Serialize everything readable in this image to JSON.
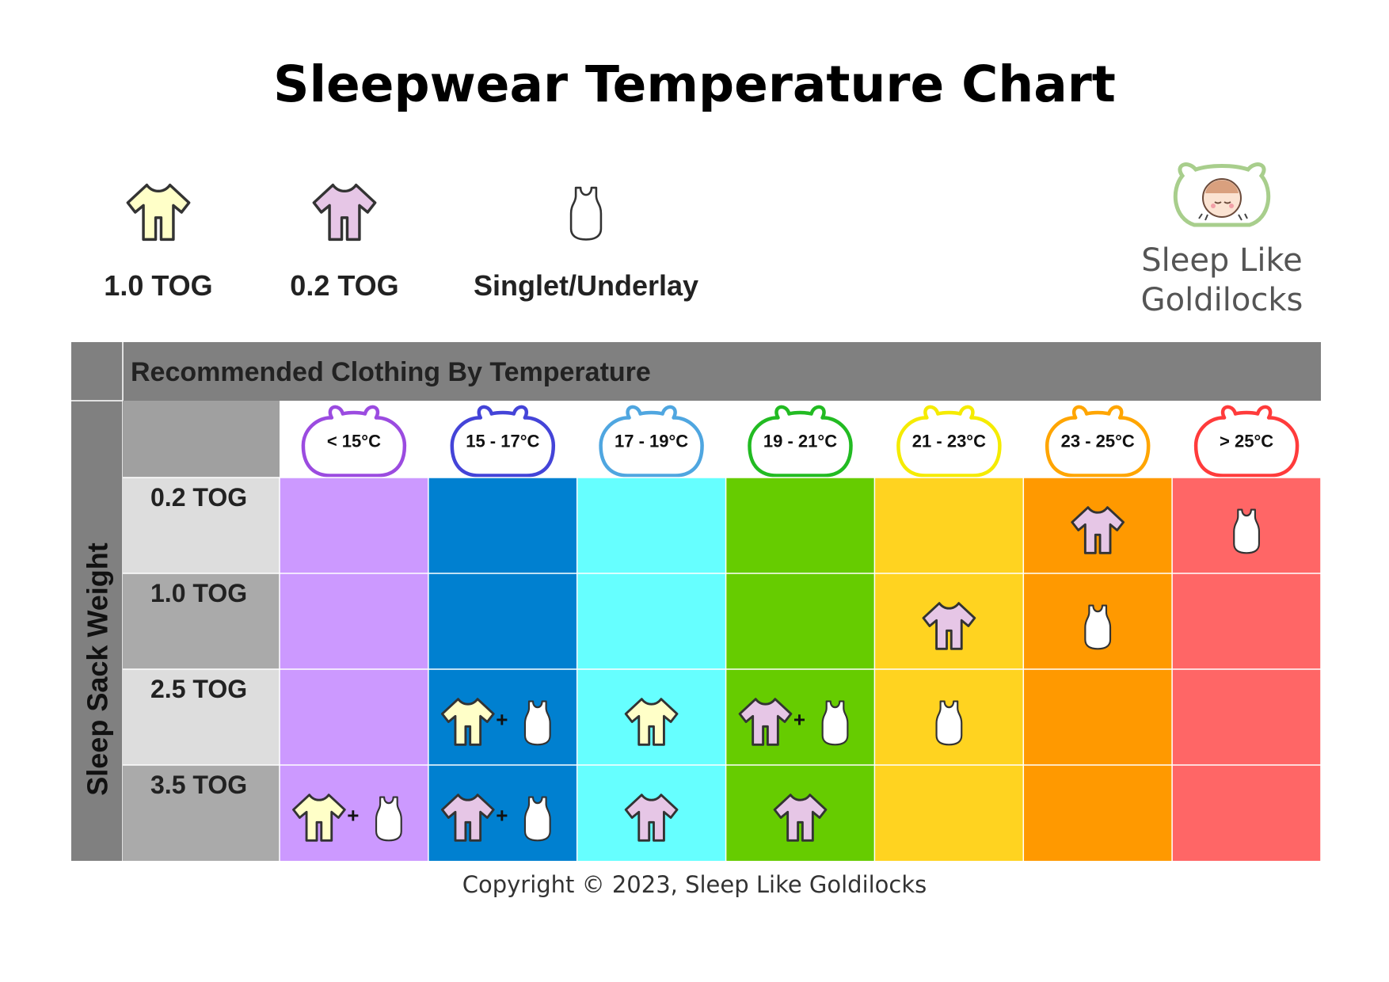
{
  "title": "Sleepwear Temperature Chart",
  "legend": [
    {
      "label": "1.0 TOG",
      "icon": "onesie-1-0-tog-icon",
      "color": "#FFFFC8"
    },
    {
      "label": "0.2 TOG",
      "icon": "onesie-0-2-tog-icon",
      "color": "#E6C6E6"
    },
    {
      "label": "Singlet/Underlay",
      "icon": "singlet-icon",
      "color": "#FFFFFF"
    }
  ],
  "logo": {
    "line1": "Sleep Like",
    "line2": "Goldilocks"
  },
  "copyright": "Copyright © 2023, Sleep Like Goldilocks",
  "colors": {
    "header_bg": "#808080",
    "row_label_light": "#DDDDDD",
    "row_label_dark": "#AAAAAA",
    "onesie_1_0": "#FFFFC8",
    "onesie_0_2": "#E6C6E6",
    "singlet": "#FFFFFF"
  },
  "chart_data": {
    "type": "table",
    "title": "Recommended Clothing By Temperature",
    "row_axis_label": "Sleep Sack Weight",
    "columns": [
      {
        "label": "< 15°C",
        "color": "#CC99FF",
        "badge_color": "#9B4BE0"
      },
      {
        "label": "15 - 17°C",
        "color": "#0080D0",
        "badge_color": "#4444D8"
      },
      {
        "label": "17 - 19°C",
        "color": "#66FFFF",
        "badge_color": "#4FA6E0"
      },
      {
        "label": "19 - 21°C",
        "color": "#66CC00",
        "badge_color": "#22BB22"
      },
      {
        "label": "21 - 23°C",
        "color": "#FFD320",
        "badge_color": "#F5EB00"
      },
      {
        "label": "23 - 25°C",
        "color": "#FF9900",
        "badge_color": "#FFA500"
      },
      {
        "label": "> 25°C",
        "color": "#FF6666",
        "badge_color": "#FF3B3B"
      }
    ],
    "rows": [
      {
        "label": "0.2 TOG",
        "cells": [
          [],
          [],
          [],
          [],
          [],
          [
            "0.2 TOG"
          ],
          [
            "Singlet/Underlay"
          ]
        ]
      },
      {
        "label": "1.0 TOG",
        "cells": [
          [],
          [],
          [],
          [],
          [
            "0.2 TOG"
          ],
          [
            "Singlet/Underlay"
          ],
          []
        ]
      },
      {
        "label": "2.5 TOG",
        "cells": [
          [],
          [
            "1.0 TOG",
            "Singlet/Underlay"
          ],
          [
            "1.0 TOG"
          ],
          [
            "0.2 TOG",
            "Singlet/Underlay"
          ],
          [
            "Singlet/Underlay"
          ],
          [],
          []
        ]
      },
      {
        "label": "3.5 TOG",
        "cells": [
          [
            "1.0 TOG",
            "Singlet/Underlay"
          ],
          [
            "0.2 TOG",
            "Singlet/Underlay"
          ],
          [
            "0.2 TOG"
          ],
          [
            "0.2 TOG"
          ],
          [],
          [],
          []
        ]
      }
    ],
    "combine_symbol": "+"
  }
}
